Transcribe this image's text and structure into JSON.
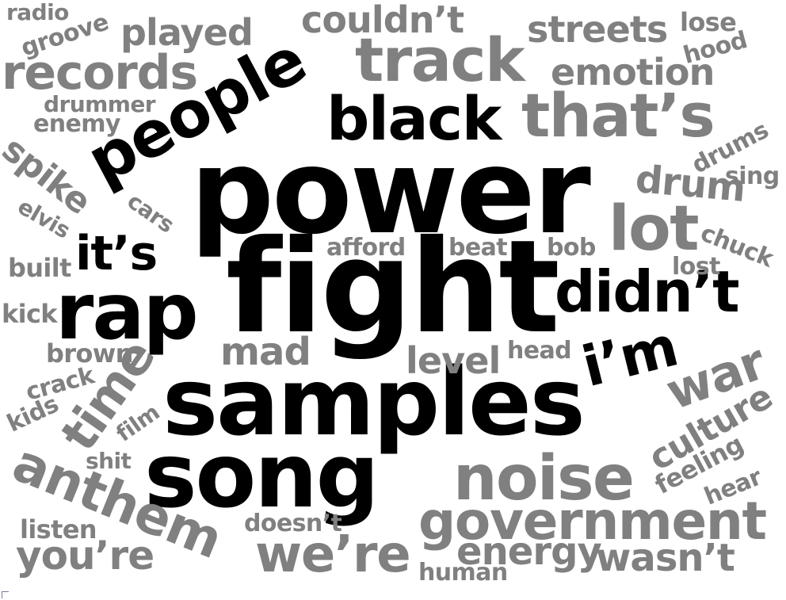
{
  "colors": {
    "primary": "#000000",
    "secondary": "#808080"
  },
  "words": {
    "power": "power",
    "fight": "fight",
    "samples": "samples",
    "song": "song",
    "rap": "rap",
    "people": "people",
    "black": "black",
    "track": "track",
    "that_s": "that’s",
    "didn_t": "didn’t",
    "i_m": "i’m",
    "it_s": "it’s",
    "lot": "lot",
    "noise": "noise",
    "government": "government",
    "we_re": "we’re",
    "records": "records",
    "anthem": "anthem",
    "time": "time",
    "war": "war",
    "culture": "culture",
    "you_re": "you’re",
    "energy": "energy",
    "wasn_t": "wasn’t",
    "streets": "streets",
    "emotion": "emotion",
    "couldn_t": "couldn’t",
    "played": "played",
    "mad": "mad",
    "level": "level",
    "drum": "drum",
    "spike": "spike",
    "radio": "radio",
    "groove": "groove",
    "lose": "lose",
    "hood": "hood",
    "drummer": "drummer",
    "enemy": "enemy",
    "drums": "drums",
    "sing": "sing",
    "cars": "cars",
    "elvis": "elvis",
    "afford": "afford",
    "beat": "beat",
    "bob": "bob",
    "chuck": "chuck",
    "lost": "lost",
    "built": "built",
    "kick": "kick",
    "brown": "brown",
    "head": "head",
    "crack": "crack",
    "kids": "kids",
    "film": "film",
    "shit": "shit",
    "feeling": "feeling",
    "hear": "hear",
    "listen": "listen",
    "doesn_t": "doesn’t",
    "human": "human"
  }
}
